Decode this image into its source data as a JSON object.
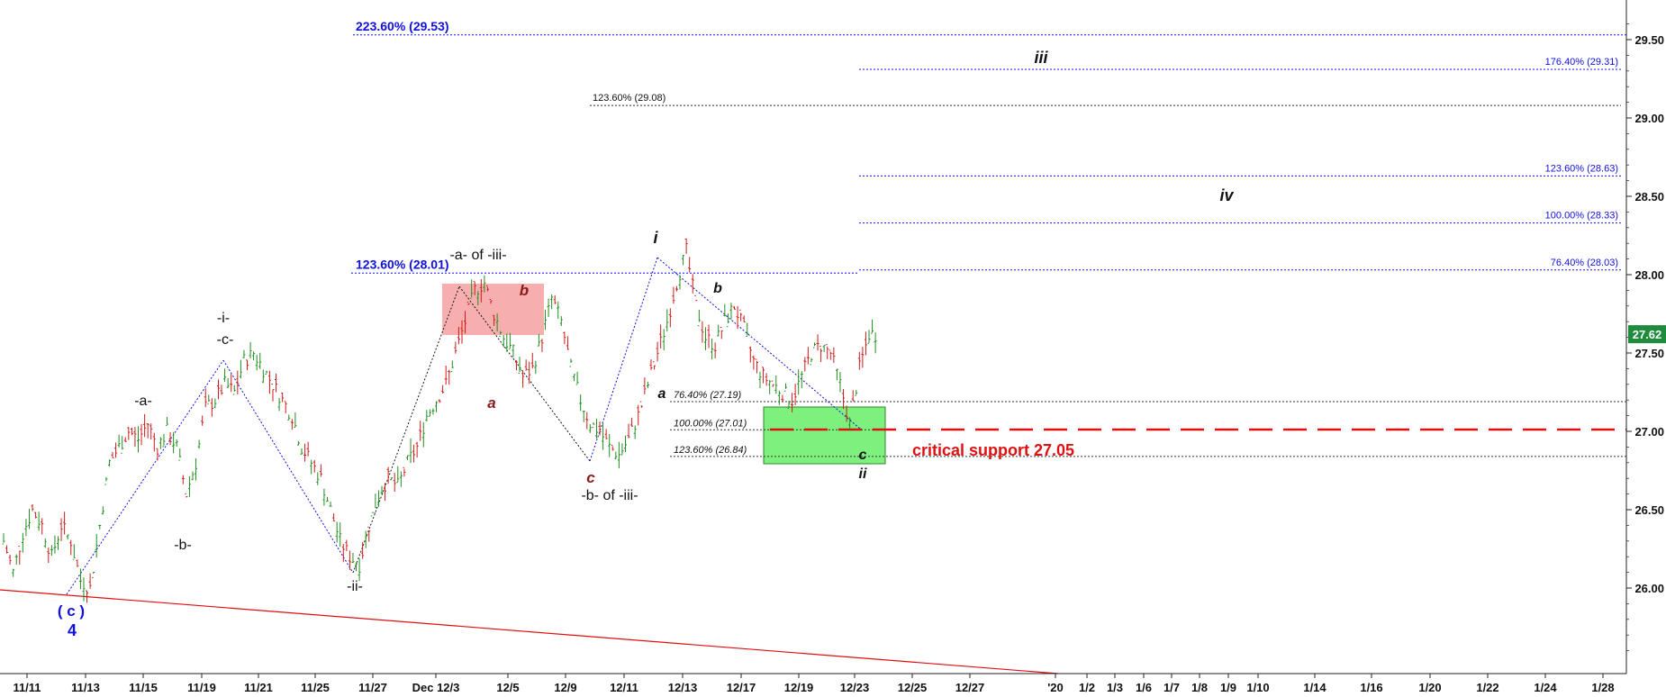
{
  "chart_data": {
    "type": "candlestick",
    "y_axis": {
      "ticks": [
        "29.50",
        "29.00",
        "28.50",
        "28.00",
        "27.50",
        "27.00",
        "26.50",
        "26.00"
      ],
      "ylim": [
        25.5,
        29.78
      ],
      "side": "right"
    },
    "x_axis": {
      "ticks": [
        "11/11",
        "11/13",
        "11/15",
        "11/19",
        "11/21",
        "11/25",
        "11/27",
        "Dec 12/3",
        "12/5",
        "12/9",
        "12/11",
        "12/13",
        "12/17",
        "12/19",
        "12/23",
        "12/25",
        "12/27",
        "'20",
        "1/2",
        "1/3",
        "1/6",
        "1/7",
        "1/8",
        "1/9",
        "1/10",
        "1/14",
        "1/16",
        "1/20",
        "1/22",
        "1/24",
        "1/28"
      ]
    },
    "last_price": "27.62",
    "price_series": [
      26.3,
      26.1,
      26.35,
      26.5,
      26.4,
      26.2,
      26.4,
      26.3,
      26.05,
      26.0,
      26.4,
      26.8,
      26.9,
      27.0,
      26.95,
      27.05,
      26.9,
      27.0,
      26.9,
      26.6,
      26.8,
      27.15,
      27.2,
      27.3,
      27.25,
      27.45,
      27.5,
      27.4,
      27.3,
      27.2,
      27.1,
      26.9,
      26.8,
      26.7,
      26.5,
      26.3,
      26.2,
      26.15,
      26.4,
      26.6,
      26.7,
      26.65,
      26.8,
      26.9,
      27.1,
      27.2,
      27.3,
      27.5,
      27.7,
      27.9,
      27.95,
      27.75,
      27.6,
      27.5,
      27.35,
      27.4,
      27.6,
      27.85,
      27.7,
      27.4,
      27.2,
      27.05,
      27.0,
      26.9,
      26.85,
      26.95,
      27.1,
      27.3,
      27.5,
      27.7,
      27.95,
      28.15,
      27.8,
      27.6,
      27.55,
      27.7,
      27.8,
      27.65,
      27.45,
      27.35,
      27.3,
      27.25,
      27.2,
      27.35,
      27.5,
      27.55,
      27.5,
      27.3,
      27.05,
      27.4,
      27.62
    ],
    "fib_levels": [
      {
        "label": "223.60% (29.53)",
        "value": 29.53
      },
      {
        "label": "176.40% (29.31)",
        "value": 29.31
      },
      {
        "label": "123.60% (29.08)",
        "value": 29.08
      },
      {
        "label": "123.60% (28.63)",
        "value": 28.63
      },
      {
        "label": "100.00% (28.33)",
        "value": 28.33
      },
      {
        "label": "123.60% (28.01)",
        "value": 28.01
      },
      {
        "label": "76.40% (28.03)",
        "value": 28.03
      },
      {
        "label": "76.40% (27.19)",
        "value": 27.19
      },
      {
        "label": "100.00% (27.01)",
        "value": 27.01
      },
      {
        "label": "123.60% (26.84)",
        "value": 26.84
      }
    ],
    "annotations": {
      "critical_support": "critical support 27.05",
      "wave_c_paren": "( c )",
      "wave_4": "4",
      "minus_a": "-a-",
      "minus_b": "-b-",
      "minus_i": "-i-",
      "minus_c": "-c-",
      "minus_ii": "-ii-",
      "a_of_iii": "-a- of -iii-",
      "b_of_iii": "-b- of -iii-",
      "sub_a": "a",
      "sub_b": "b",
      "sub_c": "c",
      "wave_i": "i",
      "wave_a": "a",
      "wave_b": "b",
      "wave_c": "c",
      "wave_ii": "ii",
      "wave_iii": "iii",
      "wave_iv": "iv"
    },
    "colors": {
      "blue": "#1010e0",
      "red": "#e01010",
      "dark_red": "#8b1a1a",
      "green_box": "#7ef07e",
      "pink_box": "#f5a0a0",
      "price_tag": "#1e8c3c"
    }
  }
}
